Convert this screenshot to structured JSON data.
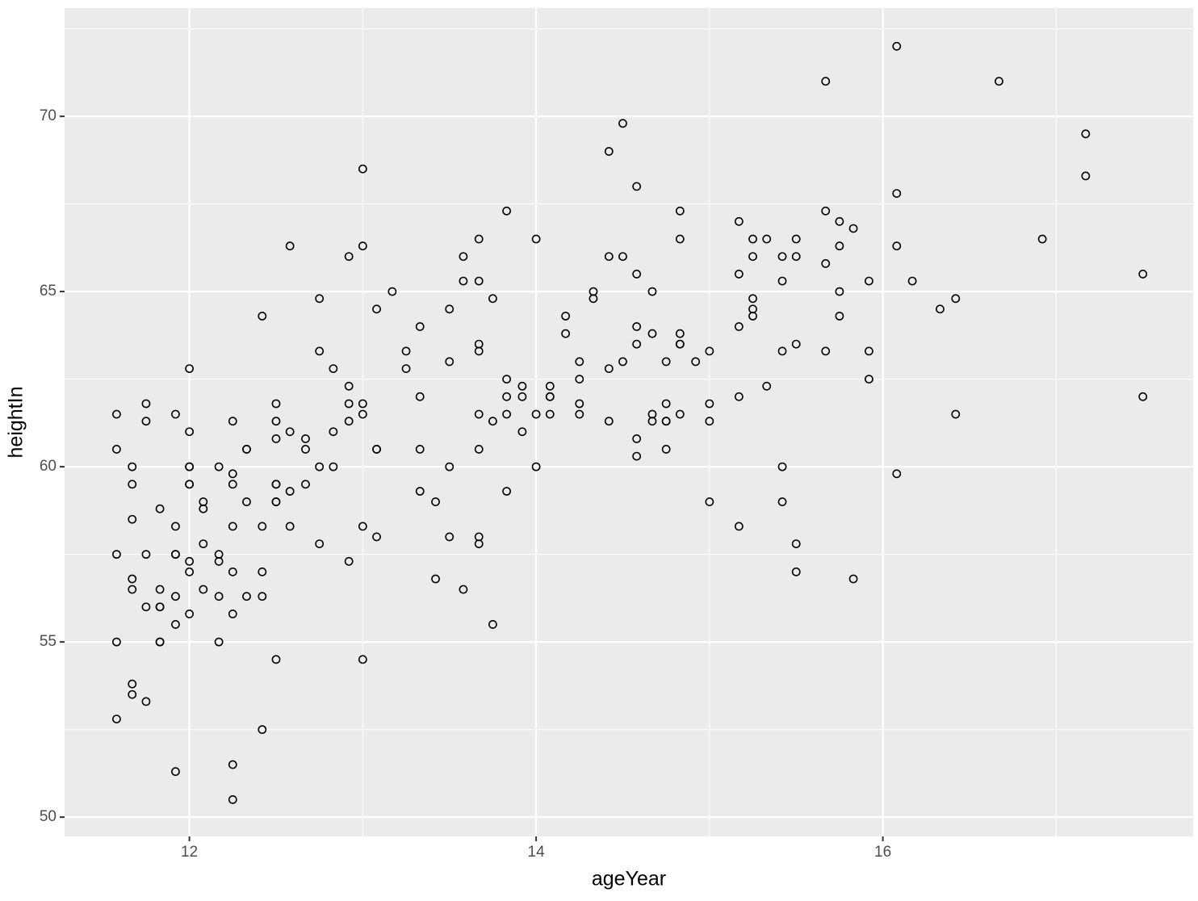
{
  "chart_data": {
    "type": "scatter",
    "x_label": "ageYear",
    "y_label": "heightIn",
    "xlim": [
      11.28,
      17.79
    ],
    "ylim": [
      49.45,
      73.09
    ],
    "xticks": [
      12,
      14,
      16
    ],
    "yticks": [
      50,
      55,
      60,
      65,
      70
    ],
    "grid": true,
    "color": "#000000",
    "series": [
      {
        "name": "points",
        "x": [
          11.58,
          11.58,
          11.58,
          11.58,
          11.58,
          11.67,
          11.67,
          11.67,
          11.67,
          11.67,
          11.67,
          11.67,
          11.75,
          11.75,
          11.75,
          11.75,
          11.75,
          11.83,
          11.83,
          11.83,
          11.83,
          11.83,
          11.83,
          11.92,
          11.92,
          11.92,
          11.92,
          11.92,
          11.92,
          11.92,
          12.0,
          12.0,
          12.0,
          12.0,
          12.0,
          12.0,
          12.0,
          12.0,
          12.0,
          12.08,
          12.08,
          12.08,
          12.08,
          12.17,
          12.17,
          12.17,
          12.17,
          12.17,
          12.25,
          12.25,
          12.25,
          12.25,
          12.25,
          12.25,
          12.25,
          12.25,
          12.33,
          12.33,
          12.33,
          12.33,
          12.42,
          12.42,
          12.42,
          12.42,
          12.42,
          12.5,
          12.5,
          12.5,
          12.5,
          12.5,
          12.5,
          12.5,
          12.5,
          12.58,
          12.58,
          12.58,
          12.58,
          12.67,
          12.67,
          12.67,
          12.75,
          12.75,
          12.75,
          12.75,
          12.83,
          12.83,
          12.83,
          12.92,
          12.92,
          12.92,
          12.92,
          12.92,
          13.0,
          13.0,
          13.0,
          13.0,
          13.0,
          13.0,
          13.08,
          13.08,
          13.08,
          13.08,
          13.17,
          13.25,
          13.25,
          13.33,
          13.33,
          13.33,
          13.33,
          13.42,
          13.42,
          13.5,
          13.5,
          13.5,
          13.5,
          13.58,
          13.58,
          13.58,
          13.67,
          13.67,
          13.67,
          13.67,
          13.67,
          13.67,
          13.67,
          13.67,
          13.75,
          13.75,
          13.75,
          13.83,
          13.83,
          13.83,
          13.83,
          13.83,
          13.92,
          13.92,
          13.92,
          14.0,
          14.0,
          14.0,
          14.08,
          14.08,
          14.08,
          14.08,
          14.17,
          14.17,
          14.25,
          14.25,
          14.25,
          14.25,
          14.33,
          14.33,
          14.42,
          14.42,
          14.42,
          14.42,
          14.5,
          14.5,
          14.5,
          14.58,
          14.58,
          14.58,
          14.58,
          14.58,
          14.58,
          14.67,
          14.67,
          14.67,
          14.67,
          14.75,
          14.75,
          14.75,
          14.75,
          14.75,
          14.83,
          14.83,
          14.83,
          14.83,
          14.83,
          14.83,
          14.92,
          15.0,
          15.0,
          15.0,
          15.0,
          15.17,
          15.17,
          15.17,
          15.17,
          15.17,
          15.25,
          15.25,
          15.25,
          15.25,
          15.25,
          15.33,
          15.33,
          15.42,
          15.42,
          15.42,
          15.42,
          15.42,
          15.5,
          15.5,
          15.5,
          15.5,
          15.5,
          15.67,
          15.67,
          15.67,
          15.67,
          15.75,
          15.75,
          15.75,
          15.75,
          15.83,
          15.83,
          15.92,
          15.92,
          15.92,
          16.08,
          16.08,
          16.08,
          16.08,
          16.17,
          16.33,
          16.42,
          16.42,
          16.67,
          16.92,
          17.17,
          17.17,
          17.5,
          17.5
        ],
        "values": [
          61.5,
          60.5,
          57.5,
          55.0,
          52.8,
          60.0,
          59.5,
          58.5,
          56.8,
          56.5,
          53.8,
          53.5,
          61.8,
          61.3,
          57.5,
          56.0,
          53.3,
          58.8,
          56.5,
          56.0,
          56.0,
          55.0,
          55.0,
          61.5,
          58.3,
          57.5,
          57.5,
          56.3,
          55.5,
          51.3,
          62.8,
          61.0,
          60.0,
          60.0,
          59.5,
          59.5,
          57.3,
          57.0,
          55.8,
          59.0,
          58.8,
          57.8,
          56.5,
          60.0,
          57.5,
          57.3,
          56.3,
          55.0,
          61.3,
          59.8,
          59.5,
          58.3,
          57.0,
          55.8,
          51.5,
          50.5,
          60.5,
          60.5,
          59.0,
          56.3,
          64.3,
          58.3,
          57.0,
          56.3,
          52.5,
          61.8,
          61.3,
          60.8,
          59.5,
          59.5,
          59.0,
          59.0,
          54.5,
          66.3,
          61.0,
          59.3,
          58.3,
          60.8,
          60.5,
          59.5,
          64.8,
          63.3,
          60.0,
          57.8,
          62.8,
          61.0,
          60.0,
          66.0,
          62.3,
          61.8,
          61.3,
          57.3,
          68.5,
          66.3,
          61.8,
          61.5,
          58.3,
          54.5,
          64.5,
          60.5,
          60.5,
          58.0,
          65.0,
          63.3,
          62.8,
          64.0,
          62.0,
          60.5,
          59.3,
          59.0,
          56.8,
          64.5,
          63.0,
          60.0,
          58.0,
          66.0,
          65.3,
          56.5,
          66.5,
          65.3,
          63.5,
          63.3,
          61.5,
          60.5,
          58.0,
          57.8,
          64.8,
          61.3,
          55.5,
          67.3,
          62.5,
          62.0,
          61.5,
          59.3,
          62.3,
          62.0,
          61.0,
          66.5,
          61.5,
          60.0,
          62.3,
          62.0,
          62.0,
          61.5,
          64.3,
          63.8,
          63.0,
          62.5,
          61.8,
          61.5,
          65.0,
          64.8,
          69.0,
          66.0,
          62.8,
          61.3,
          69.8,
          66.0,
          63.0,
          68.0,
          65.5,
          64.0,
          63.5,
          60.8,
          60.3,
          65.0,
          63.8,
          61.5,
          61.3,
          63.0,
          61.8,
          61.3,
          61.3,
          60.5,
          67.3,
          66.5,
          63.8,
          63.5,
          63.5,
          61.5,
          63.0,
          63.3,
          61.8,
          61.3,
          59.0,
          67.0,
          65.5,
          64.0,
          62.0,
          58.3,
          66.5,
          66.0,
          64.8,
          64.5,
          64.3,
          66.5,
          62.3,
          66.0,
          65.3,
          63.3,
          60.0,
          59.0,
          66.5,
          66.0,
          63.5,
          57.8,
          57.0,
          71.0,
          67.3,
          65.8,
          63.3,
          67.0,
          66.3,
          65.0,
          64.3,
          66.8,
          56.8,
          65.3,
          63.3,
          62.5,
          72.0,
          67.8,
          66.3,
          59.8,
          65.3,
          64.5,
          64.8,
          61.5,
          71.0,
          66.5,
          69.5,
          68.3,
          65.5,
          62.0
        ]
      }
    ]
  }
}
